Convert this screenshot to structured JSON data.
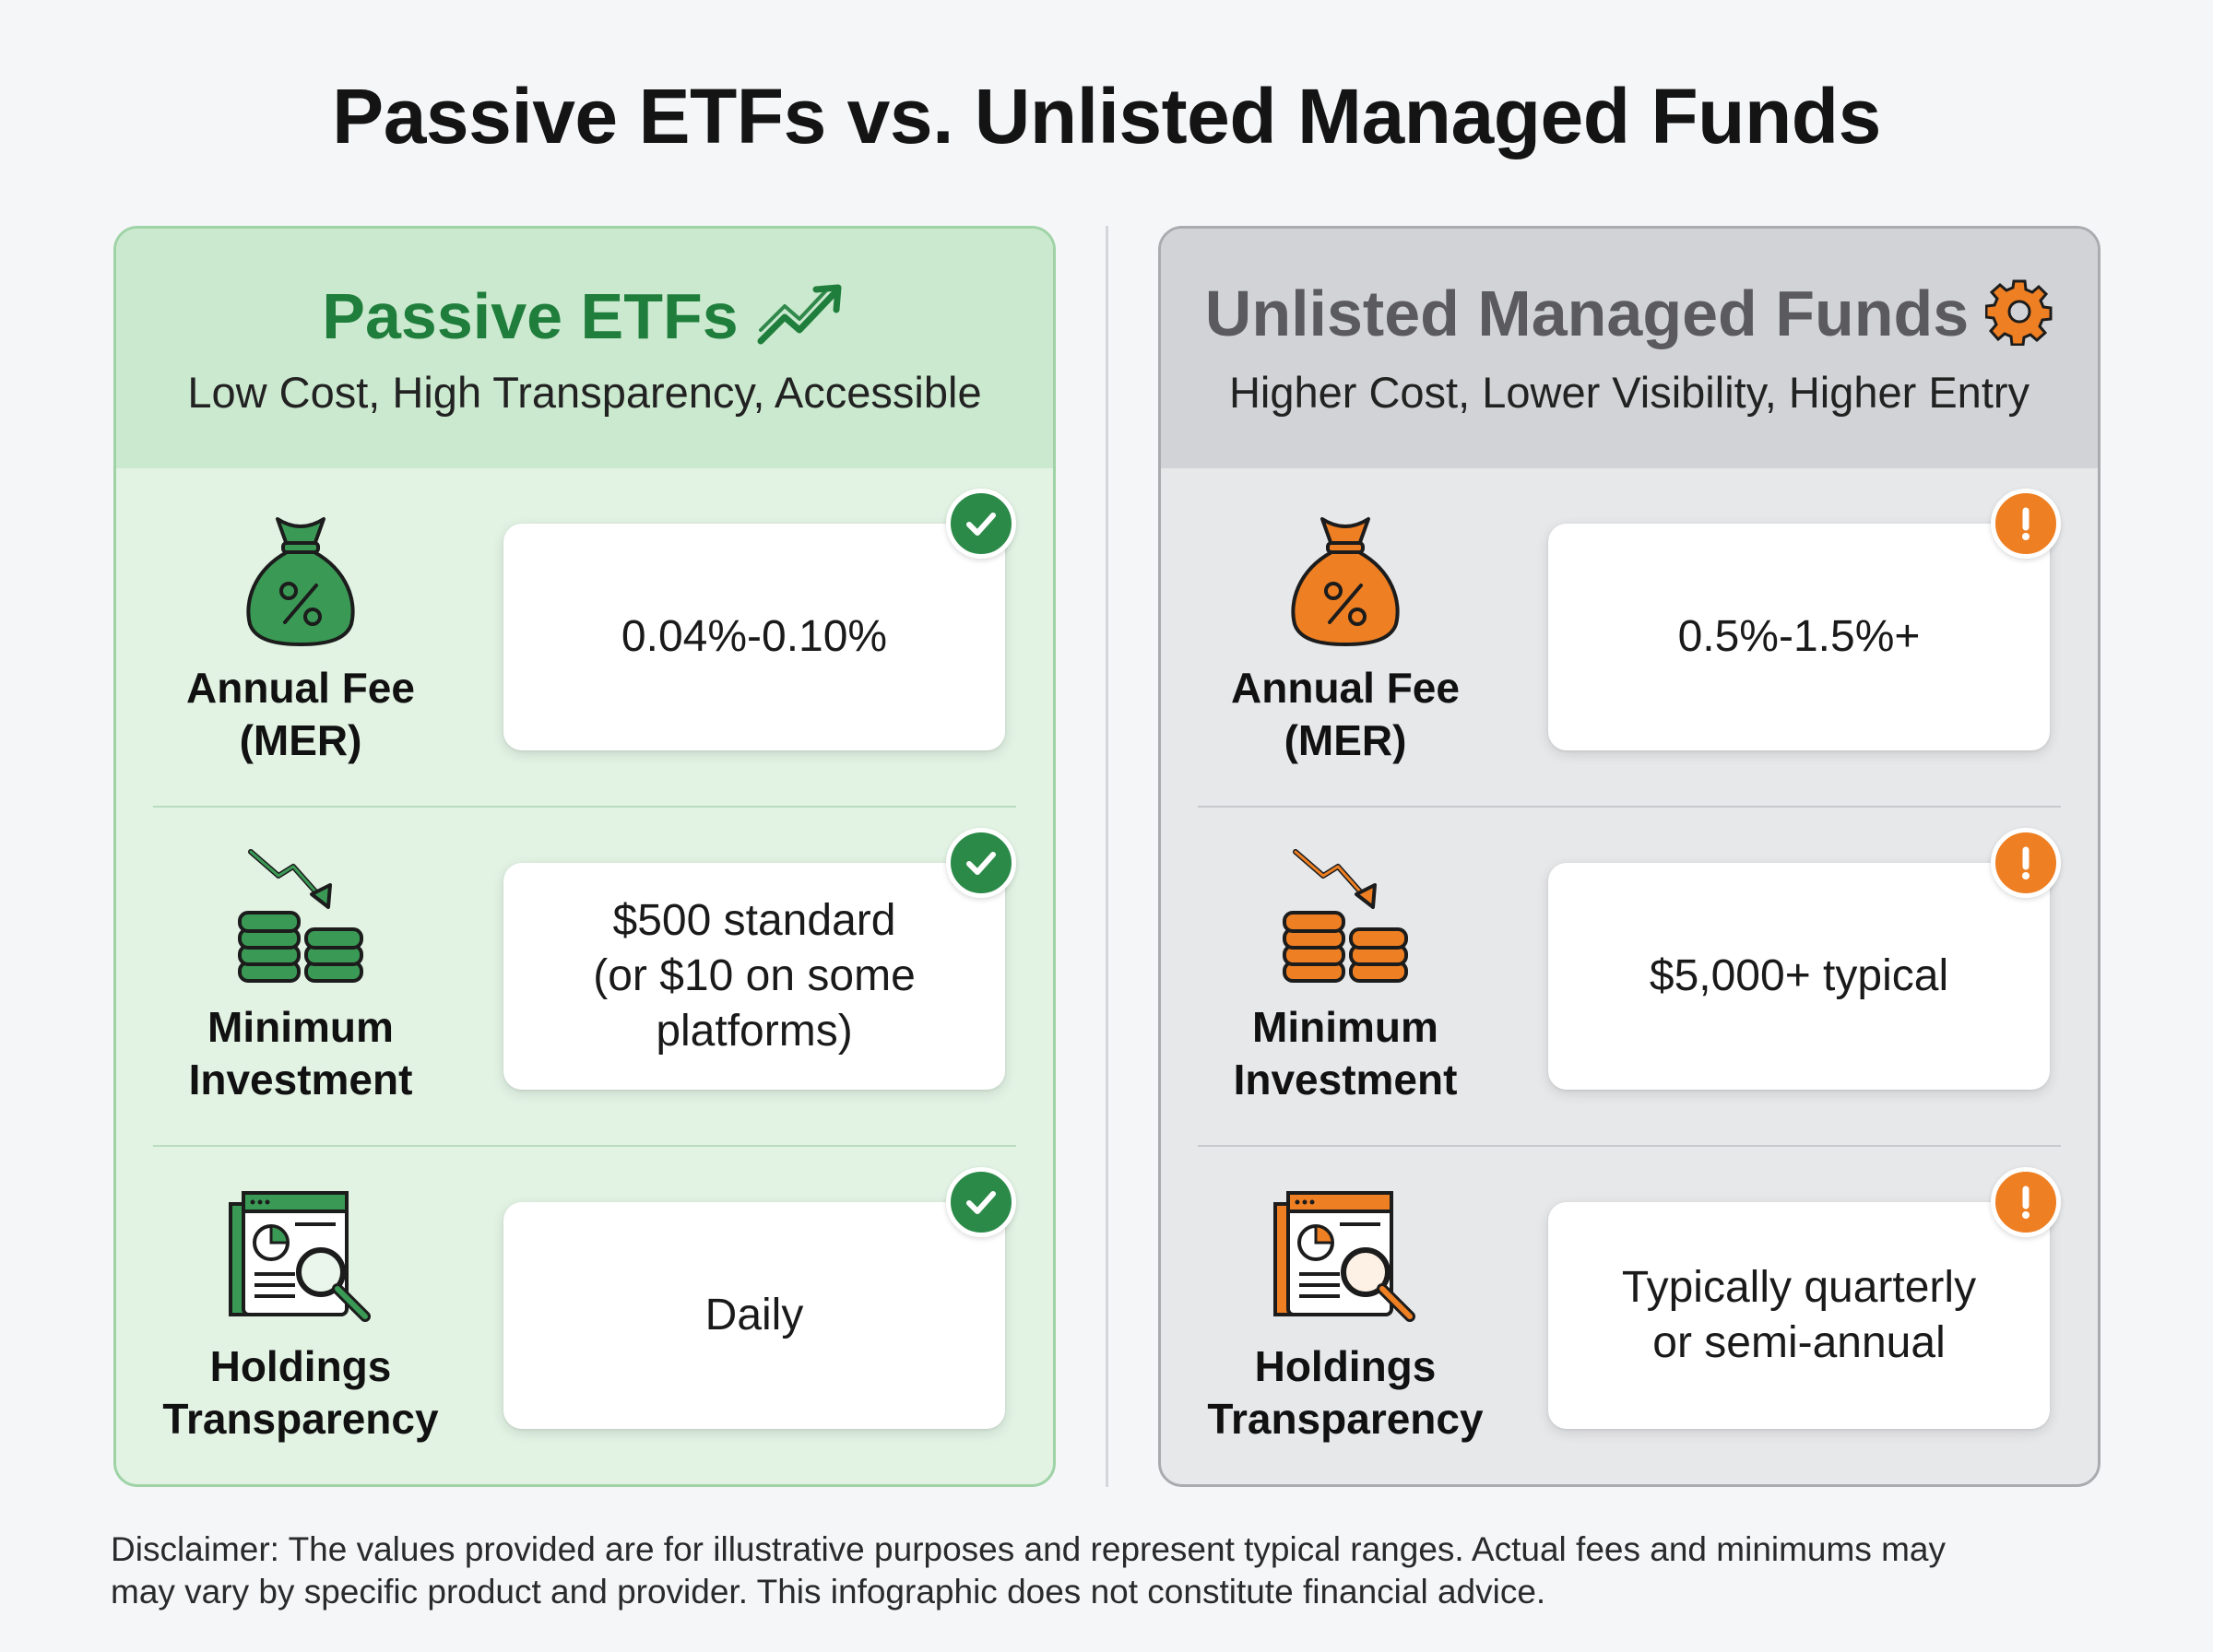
{
  "title": "Passive ETFs vs. Unlisted Managed Funds",
  "colors": {
    "etf_accent": "#1f7e3c",
    "managed_accent": "#ee7f23",
    "managed_title": "#5b5b5f"
  },
  "panels": [
    {
      "title": "Passive ETFs",
      "title_icon": "trend-up-icon",
      "subtitle": "Low Cost, High Transparency, Accessible",
      "status_icon": "check-icon",
      "rows": [
        {
          "label_line1": "Annual Fee",
          "label_line2": "(MER)",
          "icon": "money-bag-percent-icon",
          "value_lines": [
            "0.04%-0.10%"
          ]
        },
        {
          "label_line1": "Minimum",
          "label_line2": "Investment",
          "icon": "coin-stacks-down-arrow-icon",
          "value_lines": [
            "$500 standard",
            "(or $10 on some",
            "platforms)"
          ]
        },
        {
          "label_line1": "Holdings",
          "label_line2": "Transparency",
          "icon": "report-magnifier-icon",
          "value_lines": [
            "Daily"
          ]
        }
      ]
    },
    {
      "title": "Unlisted Managed Funds",
      "title_icon": "gear-icon",
      "subtitle": "Higher Cost, Lower Visibility, Higher Entry",
      "status_icon": "exclamation-icon",
      "rows": [
        {
          "label_line1": "Annual Fee",
          "label_line2": "(MER)",
          "icon": "money-bag-percent-icon",
          "value_lines": [
            "0.5%-1.5%+"
          ]
        },
        {
          "label_line1": "Minimum",
          "label_line2": "Investment",
          "icon": "coin-stacks-down-arrow-icon",
          "value_lines": [
            "$5,000+ typical"
          ]
        },
        {
          "label_line1": "Holdings",
          "label_line2": "Transparency",
          "icon": "report-magnifier-icon",
          "value_lines": [
            "Typically quarterly",
            "or semi-annual"
          ]
        }
      ]
    }
  ],
  "disclaimer_line1": "Disclaimer: The values provided are for illustrative purposes and represent typical ranges. Actual fees and minimums may",
  "disclaimer_line2": "may vary by specific product and provider. This infographic does not constitute financial advice."
}
